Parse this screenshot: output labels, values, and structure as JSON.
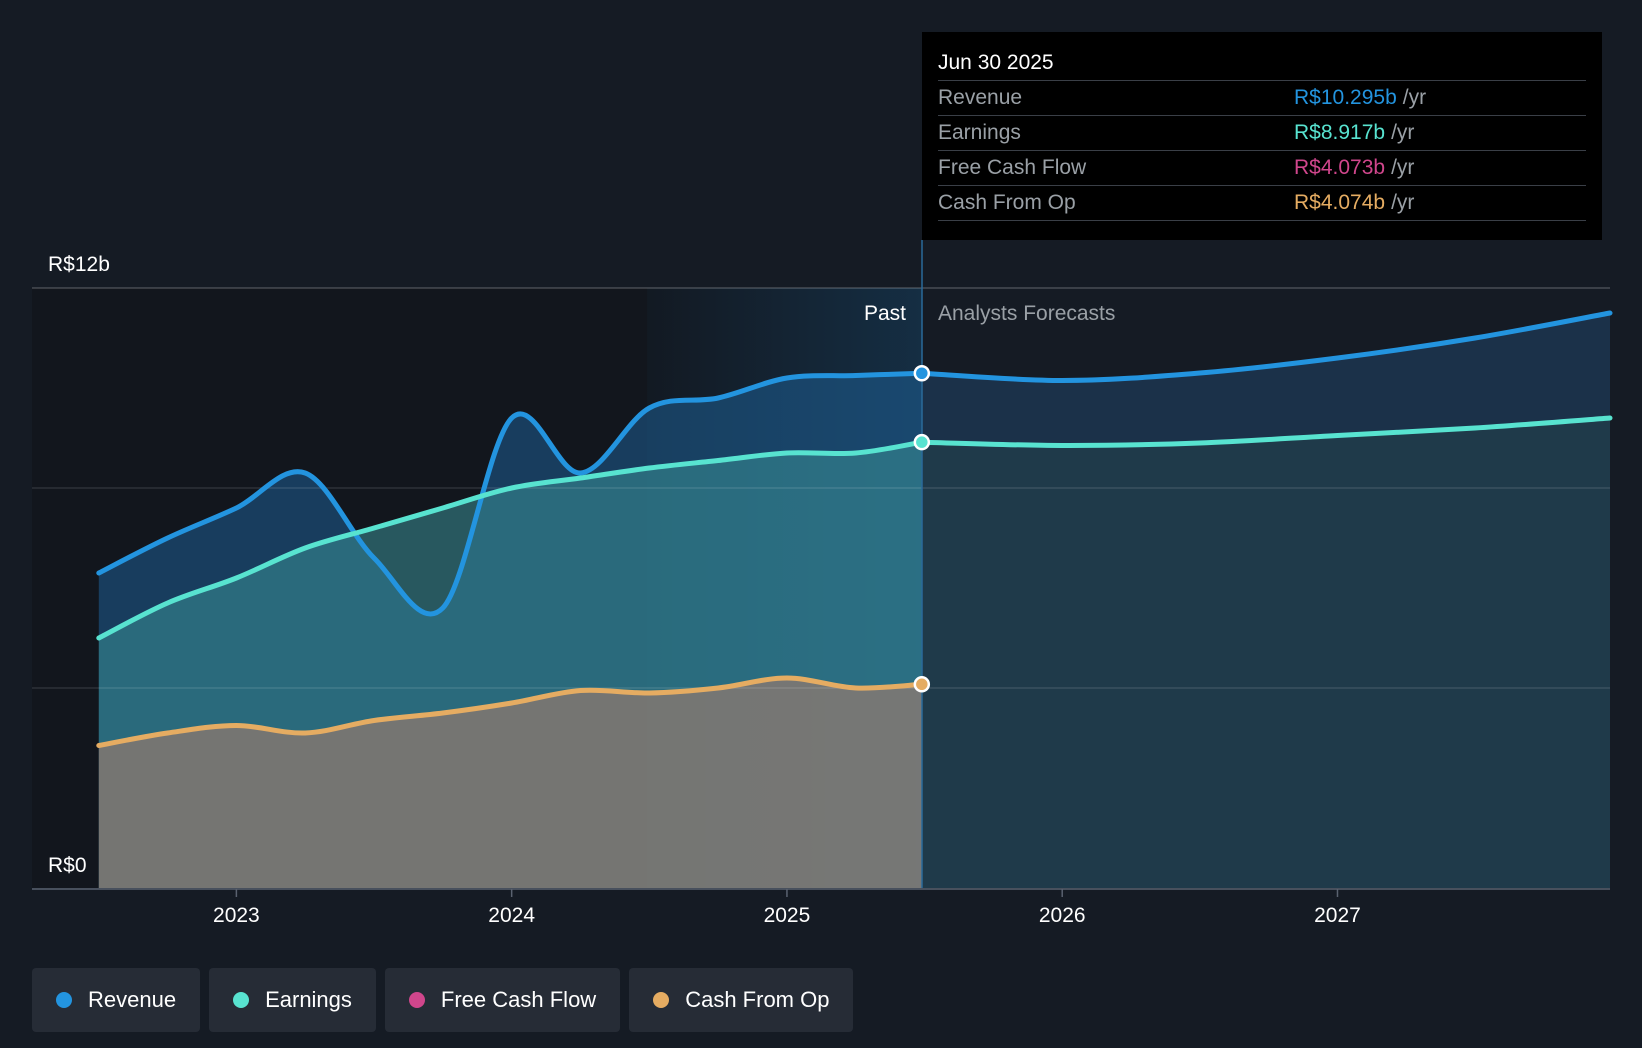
{
  "chart_data": {
    "type": "area",
    "y_axis": {
      "min": 0,
      "max": 12,
      "unit": "R$b",
      "labels": {
        "top": "R$12b",
        "bottom": "R$0"
      }
    },
    "x_axis": {
      "ticks": [
        "2023",
        "2024",
        "2025",
        "2026",
        "2027"
      ],
      "range": [
        2022.49,
        2027.99
      ]
    },
    "divider": {
      "x": 2025.49,
      "past_label": "Past",
      "forecast_label": "Analysts Forecasts"
    },
    "series": [
      {
        "name": "Revenue",
        "color": "#2394df",
        "past": [
          [
            2022.5,
            6.3
          ],
          [
            2022.75,
            7.0
          ],
          [
            2023.0,
            7.6
          ],
          [
            2023.25,
            8.3
          ],
          [
            2023.5,
            6.6
          ],
          [
            2023.75,
            5.6
          ],
          [
            2024.0,
            9.4
          ],
          [
            2024.25,
            8.3
          ],
          [
            2024.5,
            9.6
          ],
          [
            2024.75,
            9.8
          ],
          [
            2025.0,
            10.2
          ],
          [
            2025.25,
            10.25
          ],
          [
            2025.49,
            10.295
          ]
        ],
        "forecast": [
          [
            2025.49,
            10.295
          ],
          [
            2026.0,
            10.15
          ],
          [
            2026.5,
            10.3
          ],
          [
            2027.0,
            10.6
          ],
          [
            2027.5,
            11.0
          ],
          [
            2027.99,
            11.5
          ]
        ]
      },
      {
        "name": "Earnings",
        "color": "#58e3d0",
        "past": [
          [
            2022.5,
            5.0
          ],
          [
            2022.75,
            5.7
          ],
          [
            2023.0,
            6.2
          ],
          [
            2023.25,
            6.8
          ],
          [
            2023.5,
            7.2
          ],
          [
            2023.75,
            7.6
          ],
          [
            2024.0,
            8.0
          ],
          [
            2024.25,
            8.2
          ],
          [
            2024.5,
            8.4
          ],
          [
            2024.75,
            8.55
          ],
          [
            2025.0,
            8.7
          ],
          [
            2025.25,
            8.7
          ],
          [
            2025.49,
            8.917
          ]
        ],
        "forecast": [
          [
            2025.49,
            8.917
          ],
          [
            2026.0,
            8.85
          ],
          [
            2026.5,
            8.9
          ],
          [
            2027.0,
            9.05
          ],
          [
            2027.5,
            9.2
          ],
          [
            2027.99,
            9.4
          ]
        ]
      },
      {
        "name": "Free Cash Flow",
        "color": "#d0468c",
        "past": [
          [
            2025.49,
            4.073
          ]
        ],
        "forecast": []
      },
      {
        "name": "Cash From Op",
        "color": "#e5ac62",
        "past": [
          [
            2022.5,
            2.85
          ],
          [
            2022.75,
            3.1
          ],
          [
            2023.0,
            3.25
          ],
          [
            2023.25,
            3.1
          ],
          [
            2023.5,
            3.35
          ],
          [
            2023.75,
            3.5
          ],
          [
            2024.0,
            3.7
          ],
          [
            2024.25,
            3.95
          ],
          [
            2024.5,
            3.9
          ],
          [
            2024.75,
            4.0
          ],
          [
            2025.0,
            4.2
          ],
          [
            2025.25,
            4.0
          ],
          [
            2025.49,
            4.074
          ]
        ],
        "forecast": []
      }
    ]
  },
  "tooltip": {
    "date": "Jun 30 2025",
    "rows": [
      {
        "label": "Revenue",
        "value": "R$10.295b",
        "unit": "/yr",
        "color": "#2394df"
      },
      {
        "label": "Earnings",
        "value": "R$8.917b",
        "unit": "/yr",
        "color": "#58e3d0"
      },
      {
        "label": "Free Cash Flow",
        "value": "R$4.073b",
        "unit": "/yr",
        "color": "#d0468c"
      },
      {
        "label": "Cash From Op",
        "value": "R$4.074b",
        "unit": "/yr",
        "color": "#e5ac62"
      }
    ]
  },
  "legend": [
    {
      "label": "Revenue",
      "color": "#2394df"
    },
    {
      "label": "Earnings",
      "color": "#58e3d0"
    },
    {
      "label": "Free Cash Flow",
      "color": "#d0468c"
    },
    {
      "label": "Cash From Op",
      "color": "#e5ac62"
    }
  ]
}
